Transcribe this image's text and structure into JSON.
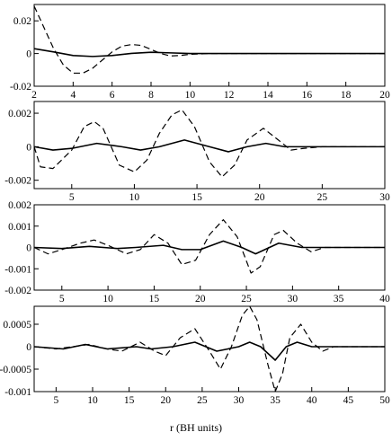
{
  "chart_data": [
    {
      "type": "line",
      "xlim": [
        2,
        20
      ],
      "ylim": [
        -0.02,
        0.03
      ],
      "x_ticks": [
        2,
        4,
        6,
        8,
        10,
        12,
        14,
        16,
        18,
        20
      ],
      "x_tick_labels": [
        "2",
        "4",
        "6",
        "8",
        "10",
        "12",
        "14",
        "16",
        "18",
        "20"
      ],
      "y_ticks": [
        -0.02,
        0,
        0.02
      ],
      "y_tick_labels": [
        "-0.02",
        "0",
        "0.02"
      ],
      "series": [
        {
          "style": "solid",
          "x": [
            2,
            3,
            4,
            5,
            6,
            7,
            8,
            9,
            10,
            12,
            14,
            16,
            18,
            20
          ],
          "y": [
            0.003,
            0.001,
            -0.0012,
            -0.0018,
            -0.0012,
            0.0001,
            0.0008,
            0.0004,
            0.0,
            0.0,
            0.0,
            0.0,
            0.0,
            0.0
          ]
        },
        {
          "style": "dashed",
          "x": [
            2,
            2.5,
            3,
            3.5,
            4,
            4.5,
            5,
            5.5,
            6,
            6.5,
            7,
            7.5,
            8,
            8.5,
            9,
            9.5,
            10,
            11,
            12,
            14,
            16,
            18,
            20
          ],
          "y": [
            0.029,
            0.016,
            0.003,
            -0.007,
            -0.012,
            -0.012,
            -0.009,
            -0.004,
            0.001,
            0.0045,
            0.0055,
            0.005,
            0.0025,
            0.0,
            -0.0015,
            -0.0012,
            -0.0005,
            0.0,
            0.0,
            0.0,
            0.0,
            0.0,
            0.0
          ]
        }
      ]
    },
    {
      "type": "line",
      "xlim": [
        2,
        30
      ],
      "ylim": [
        -0.0025,
        0.0027
      ],
      "x_ticks": [
        5,
        10,
        15,
        20,
        25,
        30
      ],
      "x_tick_labels": [
        "5",
        "10",
        "15",
        "20",
        "25",
        "30"
      ],
      "y_ticks": [
        -0.002,
        0,
        0.002
      ],
      "y_tick_labels": [
        "-0.002",
        "0",
        "0.002"
      ],
      "series": [
        {
          "style": "solid",
          "x": [
            2,
            3.5,
            5,
            7,
            9,
            10.5,
            12,
            14,
            16,
            17.5,
            19,
            20.5,
            22,
            23,
            25,
            30
          ],
          "y": [
            0.0,
            -0.0002,
            -0.0001,
            0.0002,
            0.0,
            -0.0002,
            0.0,
            0.0004,
            0.0,
            -0.0003,
            0.0,
            0.0002,
            0.0,
            0.0,
            0.0,
            0.0
          ]
        },
        {
          "style": "dashed",
          "x": [
            2,
            2.5,
            3.5,
            5,
            6,
            6.8,
            7.5,
            8.8,
            10,
            11,
            12,
            13,
            13.8,
            14.8,
            16,
            17,
            18,
            19,
            20.3,
            21.5,
            22.5,
            23.5,
            25,
            30
          ],
          "y": [
            0.0,
            -0.0012,
            -0.0013,
            -0.0002,
            0.0012,
            0.0015,
            0.0011,
            -0.0011,
            -0.0015,
            -0.0008,
            0.0008,
            0.0019,
            0.0022,
            0.0012,
            -0.0009,
            -0.0018,
            -0.0011,
            0.0004,
            0.0011,
            0.0004,
            -0.0002,
            -0.0001,
            0.0,
            0.0
          ]
        }
      ]
    },
    {
      "type": "line",
      "xlim": [
        2,
        40
      ],
      "ylim": [
        -0.002,
        0.002
      ],
      "x_ticks": [
        5,
        10,
        15,
        20,
        25,
        30,
        35,
        40
      ],
      "x_tick_labels": [
        "5",
        "10",
        "15",
        "20",
        "25",
        "30",
        "35",
        "40"
      ],
      "y_ticks": [
        -0.002,
        -0.001,
        0,
        0.001,
        0.002
      ],
      "y_tick_labels": [
        "-0.002",
        "-0.001",
        "0",
        "0.001",
        "0.002"
      ],
      "series": [
        {
          "style": "solid",
          "x": [
            2,
            5,
            8,
            11,
            13,
            16,
            18,
            20,
            22.5,
            24.5,
            26,
            28.5,
            31,
            33,
            36,
            40
          ],
          "y": [
            0.0,
            -5e-05,
            5e-05,
            -5e-05,
            0.0,
            0.0001,
            -0.0001,
            -0.0001,
            0.0003,
            0.0,
            -0.0003,
            0.0002,
            0.0,
            0.0,
            0.0,
            0.0
          ]
        },
        {
          "style": "dashed",
          "x": [
            2,
            3.5,
            5,
            7,
            8.5,
            10,
            12,
            13.5,
            15,
            16.5,
            18,
            19.5,
            21,
            22.5,
            24,
            25.5,
            26.5,
            28,
            29,
            30.5,
            32,
            33.5,
            35,
            40
          ],
          "y": [
            0.0,
            -0.0003,
            -0.0001,
            0.0002,
            0.00035,
            0.0001,
            -0.0003,
            -0.0001,
            0.0006,
            0.0002,
            -0.0008,
            -0.0006,
            0.0006,
            0.0013,
            0.0005,
            -0.0012,
            -0.0009,
            0.0006,
            0.0008,
            0.0002,
            -0.0002,
            0.0,
            0.0,
            0.0
          ]
        }
      ]
    },
    {
      "type": "line",
      "xlim": [
        2,
        50
      ],
      "ylim": [
        -0.001,
        0.0009
      ],
      "x_ticks": [
        5,
        10,
        15,
        20,
        25,
        30,
        35,
        40,
        45,
        50
      ],
      "x_tick_labels": [
        "5",
        "10",
        "15",
        "20",
        "25",
        "30",
        "35",
        "40",
        "45",
        "50"
      ],
      "y_ticks": [
        -0.001,
        -0.0005,
        0,
        0.0005
      ],
      "y_tick_labels": [
        "-0.001",
        "-0.0005",
        "0",
        "0.0005"
      ],
      "series": [
        {
          "style": "solid",
          "x": [
            2,
            6,
            9,
            12,
            16,
            18,
            21,
            24,
            27,
            30,
            31.5,
            33,
            35,
            36.5,
            38,
            40,
            43,
            50
          ],
          "y": [
            0.0,
            -5e-05,
            5e-05,
            -5e-05,
            0.0,
            -5e-05,
            0.0,
            0.0001,
            -0.0001,
            0.0,
            0.0001,
            0.0,
            -0.0003,
            0.0,
            0.0001,
            0.0,
            0.0,
            0.0
          ]
        },
        {
          "style": "dashed",
          "x": [
            2,
            5,
            9.5,
            12,
            14,
            16.5,
            18.5,
            20,
            22,
            24,
            26,
            27.5,
            29,
            30.5,
            31.5,
            32.5,
            34,
            35,
            36,
            37,
            38.5,
            40,
            41.5,
            43,
            45,
            50
          ],
          "y": [
            0.0,
            -5e-05,
            5e-05,
            -5e-05,
            -0.0001,
            0.0001,
            -0.0001,
            -0.0002,
            0.0002,
            0.0004,
            -0.0001,
            -0.0005,
            0.0,
            0.0007,
            0.0009,
            0.0006,
            -0.0004,
            -0.001,
            -0.0006,
            0.0002,
            0.0005,
            0.0001,
            -0.0001,
            0.0,
            0.0,
            0.0
          ]
        }
      ]
    }
  ],
  "x_axis_label": "r (BH units)"
}
